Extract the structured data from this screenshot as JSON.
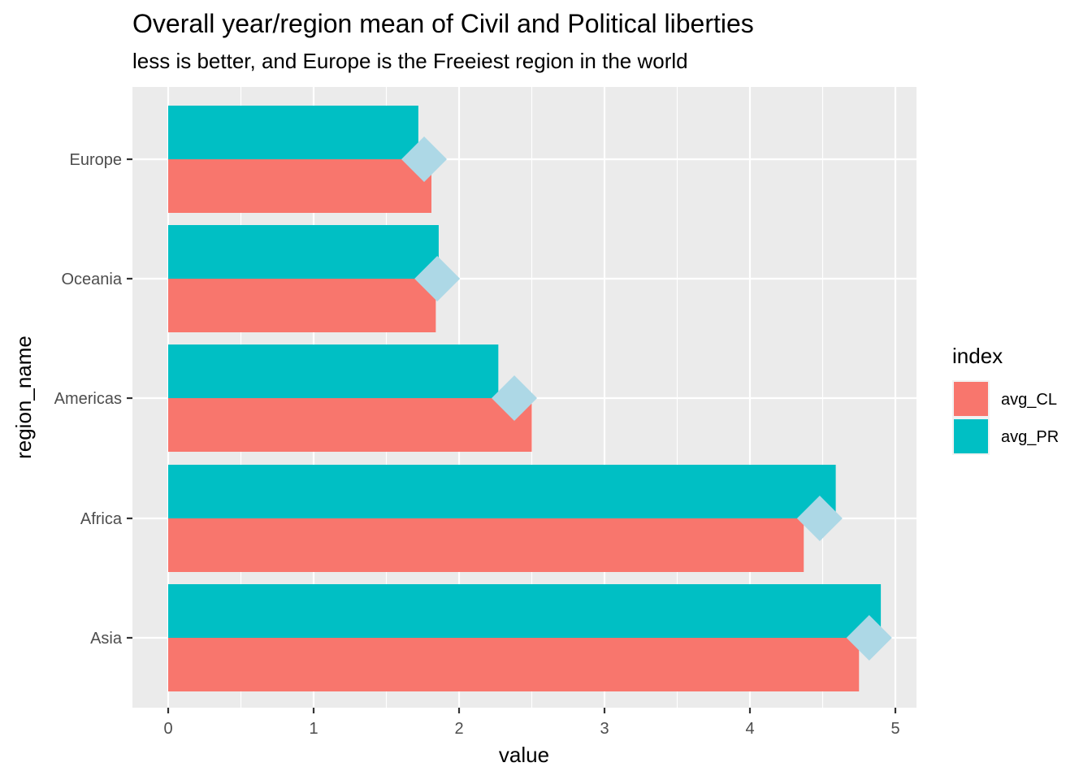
{
  "chart_data": {
    "type": "bar",
    "orientation": "horizontal",
    "title": "Overall year/region mean of Civil and Political liberties",
    "subtitle": "less is better, and Europe is the Freeiest region in the world",
    "xlabel": "value",
    "ylabel": "region_name",
    "xlim": [
      0,
      5
    ],
    "x_ticks": [
      "0",
      "1",
      "2",
      "3",
      "4",
      "5"
    ],
    "grid": true,
    "categories": [
      "Europe",
      "Oceania",
      "Americas",
      "Africa",
      "Asia"
    ],
    "series": [
      {
        "name": "avg_CL",
        "color": "#F8766D",
        "values": [
          1.81,
          1.84,
          2.5,
          4.37,
          4.75
        ]
      },
      {
        "name": "avg_PR",
        "color": "#00BFC4",
        "values": [
          1.72,
          1.86,
          2.27,
          4.59,
          4.9
        ]
      }
    ],
    "mean_markers": {
      "shape": "diamond",
      "color": "#ADD8E6",
      "values": [
        1.76,
        1.85,
        2.38,
        4.48,
        4.82
      ]
    },
    "legend": {
      "title": "index",
      "position": "right"
    }
  }
}
